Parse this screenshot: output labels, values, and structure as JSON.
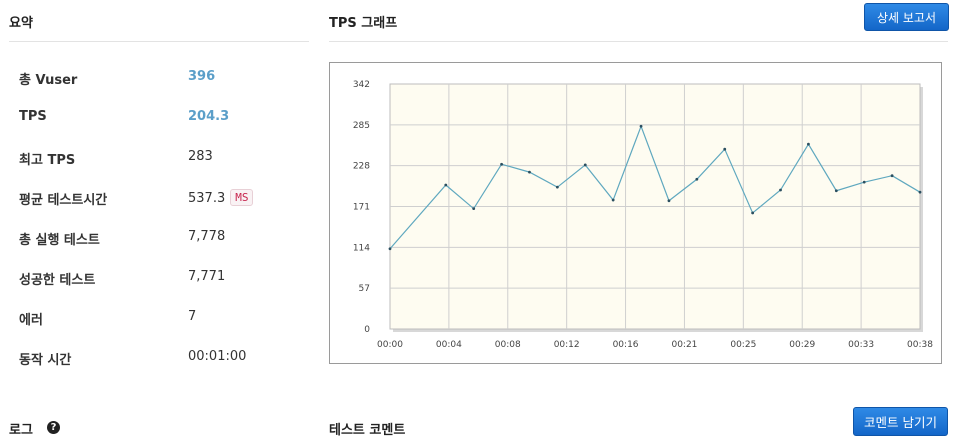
{
  "summary": {
    "title": "요약",
    "rows": [
      {
        "label": "총 Vuser",
        "value": "396",
        "accent": true
      },
      {
        "label": "TPS",
        "value": "204.3",
        "accent": true
      },
      {
        "label": "최고 TPS",
        "value": "283"
      },
      {
        "label": "평균 테스트시간",
        "value": "537.3",
        "unit": "MS"
      },
      {
        "label": "총 실행 테스트",
        "value": "7,778"
      },
      {
        "label": "성공한 테스트",
        "value": "7,771"
      },
      {
        "label": "에러",
        "value": "7"
      },
      {
        "label": "동작 시간",
        "value": "00:01:00"
      }
    ]
  },
  "tps_graph": {
    "title": "TPS 그래프"
  },
  "detail_report_button": "상세 보고서",
  "log": {
    "title": "로그",
    "help_icon": "question-circle-icon"
  },
  "test_comment": {
    "title": "테스트 코멘트",
    "button": "코멘트 남기기"
  },
  "colors": {
    "accent_value": "#5b9fc9",
    "button": "#1a73d9",
    "plot_background": "#fefcf1",
    "line": "#5fa8bf",
    "unit_badge_text": "#c7254e"
  },
  "chart_data": {
    "type": "line",
    "x_ticks": [
      "00:00",
      "00:04",
      "00:08",
      "00:12",
      "00:16",
      "00:21",
      "00:25",
      "00:29",
      "00:33",
      "00:38"
    ],
    "y_ticks": [
      0,
      57,
      114,
      171,
      228,
      285,
      342
    ],
    "ylim": [
      0,
      342
    ],
    "xlim": [
      0,
      38
    ],
    "grid": true,
    "series": [
      {
        "x": [
          0,
          4,
          6,
          8,
          10,
          12,
          14,
          16,
          18,
          20,
          22,
          24,
          26,
          28,
          30,
          32,
          34,
          36,
          38
        ],
        "values": [
          112,
          201,
          168,
          230,
          219,
          198,
          229,
          180,
          283,
          179,
          209,
          251,
          162,
          194,
          258,
          193,
          205,
          214,
          191
        ]
      }
    ]
  }
}
